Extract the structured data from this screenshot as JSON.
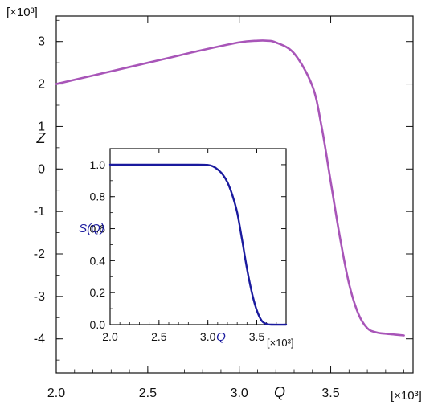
{
  "chart_data": [
    {
      "type": "line",
      "xlabel": "Q",
      "ylabel": "Z",
      "x_multiplier": "[×10³]",
      "y_multiplier": "[×10³]",
      "xlim": [
        2.0,
        3.95
      ],
      "ylim": [
        -4.8,
        3.6
      ],
      "x_ticks": [
        2.0,
        2.5,
        3.0,
        3.5
      ],
      "x_tick_labels": [
        "2.0",
        "2.5",
        "3.0",
        "3.5"
      ],
      "y_ticks": [
        -4,
        -3,
        -2,
        -1,
        0,
        1,
        2,
        3
      ],
      "y_tick_labels": [
        "-4",
        "-3",
        "-2",
        "-1",
        "0",
        "1",
        "2",
        "3"
      ],
      "line_color": "#A855B8",
      "series": [
        {
          "x": [
            2.0,
            2.2,
            2.4,
            2.6,
            2.8,
            3.0,
            3.1,
            3.15,
            3.2,
            3.3,
            3.4,
            3.45,
            3.5,
            3.55,
            3.6,
            3.65,
            3.7,
            3.75,
            3.8,
            3.85,
            3.9
          ],
          "y": [
            2.0,
            2.2,
            2.4,
            2.6,
            2.8,
            2.98,
            3.02,
            3.02,
            2.98,
            2.72,
            1.95,
            1.0,
            -0.3,
            -1.6,
            -2.7,
            -3.4,
            -3.75,
            -3.85,
            -3.88,
            -3.9,
            -3.92
          ]
        }
      ]
    },
    {
      "type": "line",
      "xlabel": "Q",
      "ylabel": "S(Q)",
      "x_multiplier": "[×10³]",
      "xlim": [
        2.0,
        3.8
      ],
      "ylim": [
        0.0,
        1.1
      ],
      "x_ticks": [
        2.0,
        2.5,
        3.0,
        3.5
      ],
      "x_tick_labels": [
        "2.0",
        "2.5",
        "3.0",
        "3.5"
      ],
      "y_ticks": [
        0.0,
        0.2,
        0.4,
        0.6,
        0.8,
        1.0
      ],
      "y_tick_labels": [
        "0.0",
        "0.2",
        "0.4",
        "0.6",
        "0.8",
        "1.0"
      ],
      "line_color": "#1A1A9E",
      "label_color": "#1A1A9E",
      "series": [
        {
          "x": [
            2.0,
            2.5,
            2.9,
            3.0,
            3.05,
            3.1,
            3.15,
            3.2,
            3.25,
            3.3,
            3.35,
            3.4,
            3.45,
            3.5,
            3.55,
            3.6,
            3.65,
            3.8
          ],
          "y": [
            1.0,
            1.0,
            1.0,
            0.998,
            0.99,
            0.97,
            0.94,
            0.89,
            0.81,
            0.7,
            0.53,
            0.35,
            0.2,
            0.09,
            0.025,
            0.004,
            0.0,
            0.0
          ]
        }
      ]
    }
  ]
}
